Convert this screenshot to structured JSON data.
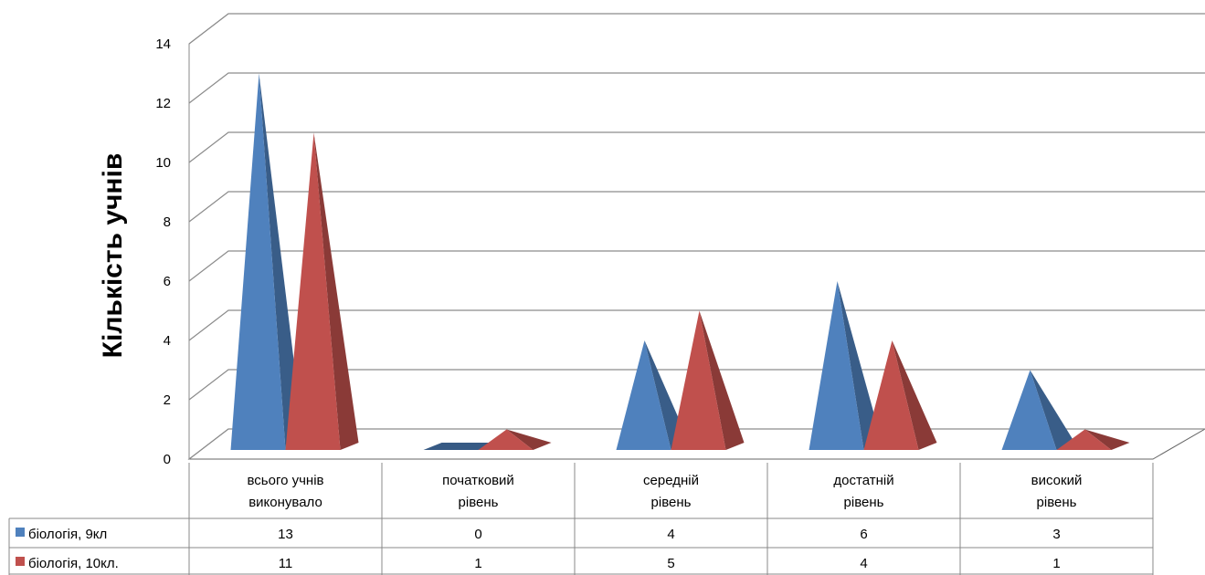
{
  "chart_data": {
    "type": "bar",
    "style": "3d-pyramid",
    "ylabel": "Кількість учнів",
    "ylim": [
      0,
      14
    ],
    "yticks": [
      0,
      2,
      4,
      6,
      8,
      10,
      12,
      14
    ],
    "grid": true,
    "legend": "data-table",
    "categories": [
      [
        "всього учнів",
        "виконувало"
      ],
      [
        "початковий",
        "рівень"
      ],
      [
        "середній",
        "рівень"
      ],
      [
        "достатній",
        "рівень"
      ],
      [
        "високий",
        "рівень"
      ]
    ],
    "series": [
      {
        "name": "біологія, 9кл",
        "color": "#4F81BD",
        "values": [
          13,
          0,
          4,
          6,
          3
        ]
      },
      {
        "name": "біологія, 10кл.",
        "color": "#C0504D",
        "values": [
          11,
          1,
          5,
          4,
          1
        ]
      }
    ]
  }
}
